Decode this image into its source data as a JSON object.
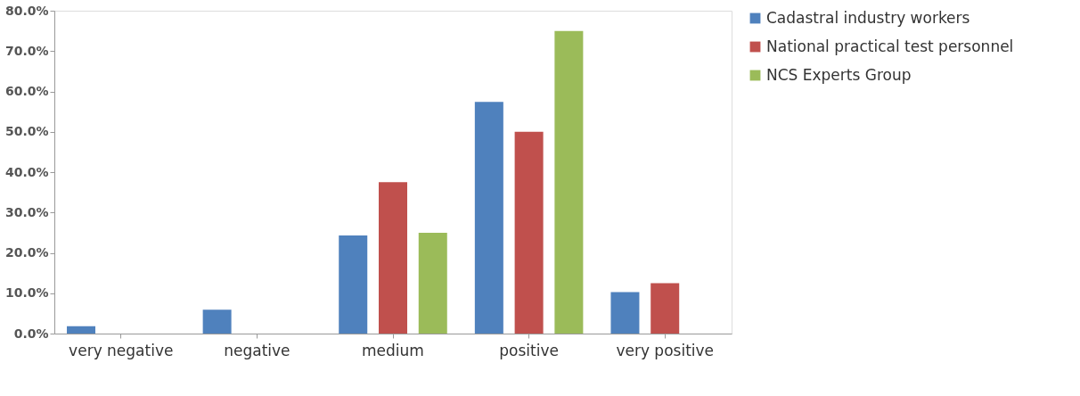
{
  "chart_data": {
    "type": "bar",
    "categories": [
      "very negative",
      "negative",
      "medium",
      "positive",
      "very positive"
    ],
    "series": [
      {
        "name": "Cadastral industry workers",
        "color": "#4f81bd",
        "values": [
          1.8,
          5.9,
          24.3,
          57.4,
          10.3
        ]
      },
      {
        "name": "National practical test personnel",
        "color": "#c0504d",
        "values": [
          null,
          null,
          37.5,
          50.0,
          12.5
        ]
      },
      {
        "name": "NCS Experts Group",
        "color": "#9bbb59",
        "values": [
          null,
          null,
          25.0,
          75.0,
          null
        ]
      }
    ],
    "ylim": [
      0,
      80
    ],
    "yticks": [
      {
        "value": 0,
        "label": "0.0%"
      },
      {
        "value": 10,
        "label": "10.0%"
      },
      {
        "value": 20,
        "label": "20.0%"
      },
      {
        "value": 30,
        "label": "30.0%"
      },
      {
        "value": 40,
        "label": "40.0%"
      },
      {
        "value": 50,
        "label": "50.0%"
      },
      {
        "value": 60,
        "label": "60.0%"
      },
      {
        "value": 70,
        "label": "70.0%"
      },
      {
        "value": 80,
        "label": "80.0%"
      }
    ],
    "grid": false,
    "legend": "right"
  }
}
